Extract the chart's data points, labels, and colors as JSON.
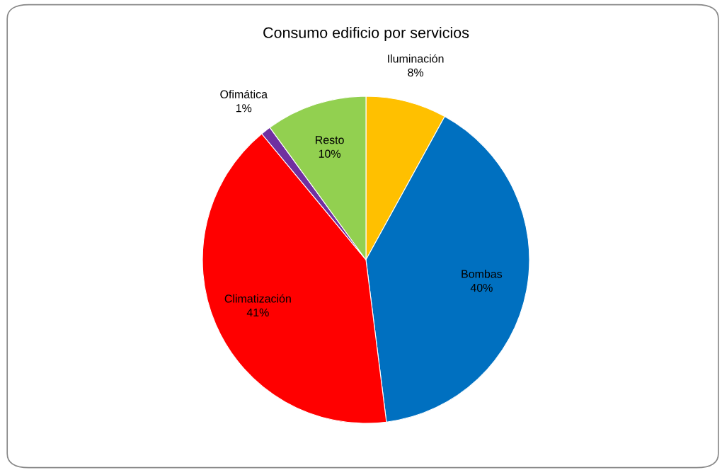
{
  "chart_data": {
    "type": "pie",
    "title": "Consumo edificio por servicios",
    "categories": [
      "Iluminación",
      "Bombas",
      "Climatización",
      "Ofimática",
      "Resto"
    ],
    "values": [
      8,
      40,
      41,
      1,
      10
    ],
    "value_labels": [
      "8%",
      "40%",
      "41%",
      "1%",
      "10%"
    ],
    "colors": [
      "#ffc000",
      "#0070c0",
      "#ff0000",
      "#7030a0",
      "#92d050"
    ],
    "legend": false
  }
}
